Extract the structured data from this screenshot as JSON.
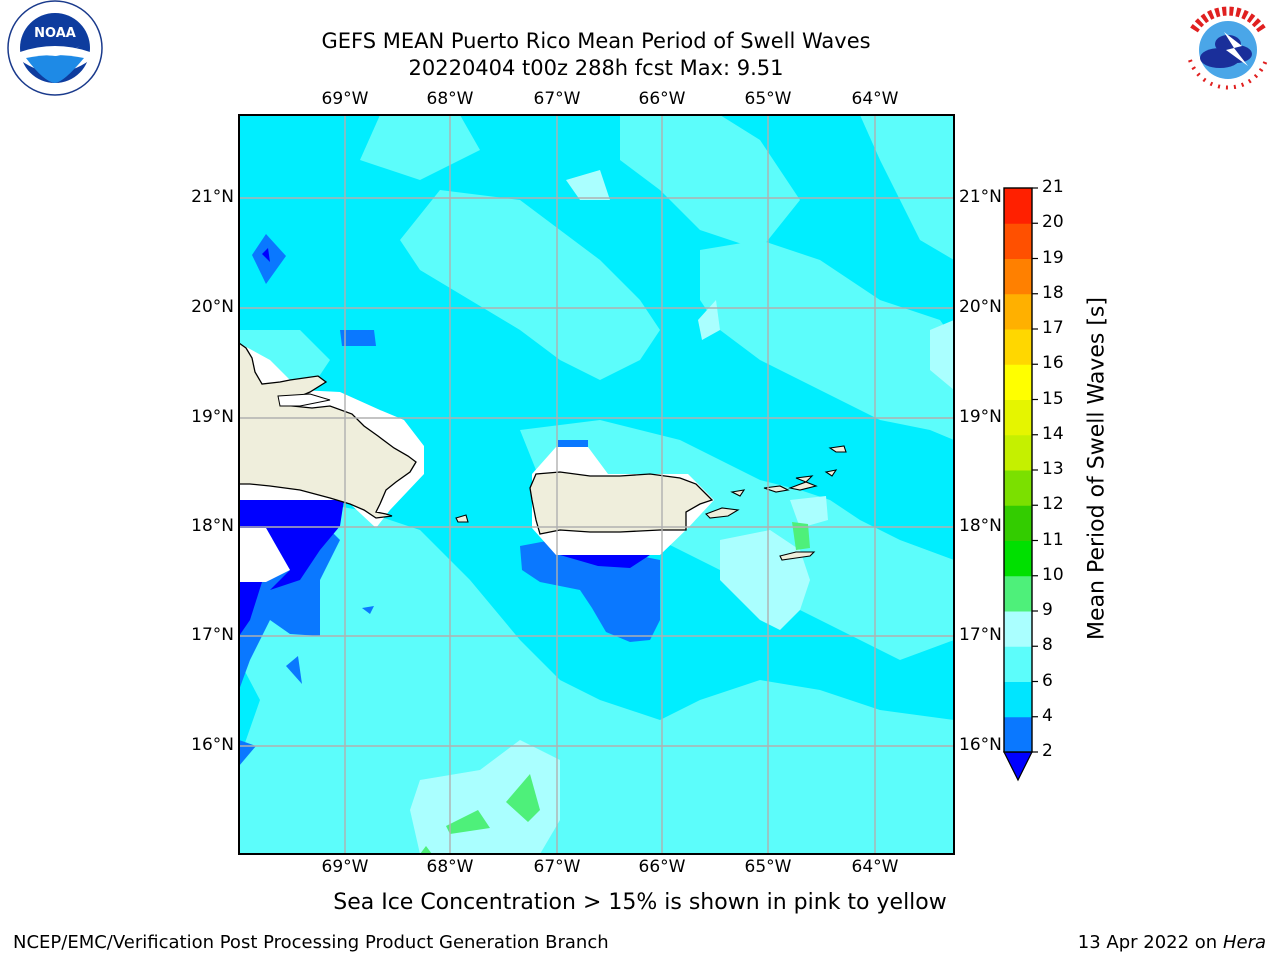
{
  "title": {
    "line1": "GEFS MEAN Puerto Rico Mean Period of Swell Waves",
    "line2": "20220404 t00z 288h fcst   Max: 9.51"
  },
  "logos": {
    "left_text": "NOAA",
    "left_ring_text": "NATIONAL OCEANIC AND ATMOSPHERIC ADMINISTRATION · U.S. DEPARTMENT OF COMMERCE",
    "right_ring_text": "NATIONAL WEATHER SERVICE"
  },
  "map": {
    "lon_labels": [
      "69°W",
      "68°W",
      "67°W",
      "66°W",
      "65°W",
      "64°W"
    ],
    "lat_labels": [
      "21°N",
      "20°N",
      "19°N",
      "18°N",
      "17°N",
      "16°N"
    ]
  },
  "colorbar": {
    "label": "Mean Period of Swell Waves [s]",
    "levels": [
      2,
      4,
      6,
      8,
      9,
      10,
      11,
      12,
      13,
      14,
      15,
      16,
      17,
      18,
      19,
      20,
      21
    ],
    "tick_labels": [
      "2",
      "4",
      "6",
      "8",
      "9",
      "10",
      "11",
      "12",
      "13",
      "14",
      "15",
      "16",
      "17",
      "18",
      "19",
      "20",
      "21"
    ],
    "colors": [
      "#0a78ff",
      "#00e5ff",
      "#5cfdfb",
      "#aaffff",
      "#4ef07a",
      "#00e000",
      "#33cc00",
      "#7be000",
      "#c5f000",
      "#e5f500",
      "#ffff00",
      "#ffd700",
      "#ffb000",
      "#ff8000",
      "#ff5000",
      "#ff2000"
    ],
    "under_color": "#0000ff"
  },
  "colors": {
    "land": "#efeedc",
    "grid": "#b0b0b0"
  },
  "note": "Sea Ice Concentration > 15% is shown in pink to yellow",
  "footer": {
    "left": "NCEP/EMC/Verification Post Processing Product Generation Branch",
    "date": "13 Apr 2022 on ",
    "machine": "Hera"
  }
}
